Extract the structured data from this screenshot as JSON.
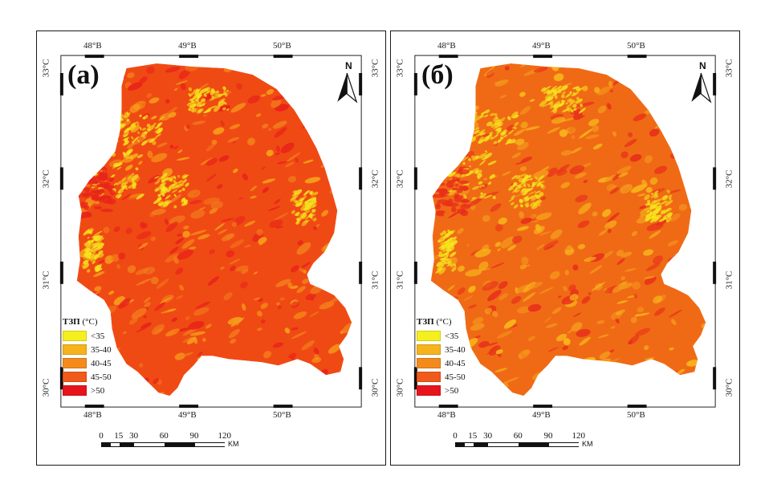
{
  "panels": [
    {
      "letter": "(а)",
      "north": "N",
      "lon_top": [
        "48°В",
        "49°В",
        "50°В"
      ],
      "lon_bottom": [
        "48°В",
        "49°В",
        "50°В"
      ],
      "lat_left": [
        "33°С",
        "32°С",
        "31°С",
        "30°С"
      ],
      "lat_right": [
        "33°С",
        "32°С",
        "31°С",
        "30°С"
      ],
      "palette": {
        "base": "#f04a14",
        "hot": "#e8231a",
        "mid": "#f27a1c",
        "warm": "#f6a11a",
        "cool": "#f5e51d"
      },
      "legend": {
        "title": "ТЗП",
        "unit": "(°C)",
        "items": [
          {
            "label": "<35",
            "color": "#f5f01c"
          },
          {
            "label": "35-40",
            "color": "#f7b31b"
          },
          {
            "label": "40-45",
            "color": "#f58a1c"
          },
          {
            "label": "45-50",
            "color": "#f05a1a"
          },
          {
            "label": ">50",
            "color": "#e8141b"
          }
        ]
      },
      "scale": {
        "ticks": [
          "0",
          "15",
          "30",
          "60",
          "90",
          "120"
        ],
        "unit": "KM"
      }
    },
    {
      "letter": "(б)",
      "north": "N",
      "lon_top": [
        "48°В",
        "49°В",
        "50°В"
      ],
      "lon_bottom": [
        "48°В",
        "49°В",
        "50°В"
      ],
      "lat_left": [
        "33°С",
        "32°С",
        "31°С",
        "30°С"
      ],
      "lat_right": [
        "33°С",
        "32°С",
        "31°С",
        "30°С"
      ],
      "palette": {
        "base": "#f06a16",
        "hot": "#e8301a",
        "mid": "#f4951c",
        "warm": "#f7b81b",
        "cool": "#f5e51d"
      },
      "legend": {
        "title": "ТЗП",
        "unit": "(°C)",
        "items": [
          {
            "label": "<35",
            "color": "#f5f01c"
          },
          {
            "label": "35-40",
            "color": "#f7b31b"
          },
          {
            "label": "40-45",
            "color": "#f58a1c"
          },
          {
            "label": "45-50",
            "color": "#f05a1a"
          },
          {
            "label": ">50",
            "color": "#e8141b"
          }
        ]
      },
      "scale": {
        "ticks": [
          "0",
          "15",
          "30",
          "60",
          "90",
          "120"
        ],
        "unit": "KM"
      }
    }
  ]
}
